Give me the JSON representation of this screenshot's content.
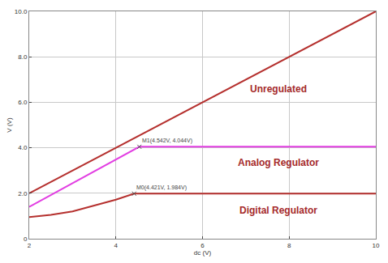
{
  "chart_data": {
    "type": "line",
    "x_label": "dc (V)",
    "y_label": "V (V)",
    "xlim": [
      2,
      10
    ],
    "ylim": [
      0,
      10
    ],
    "xticks": [
      2,
      4,
      6,
      8,
      10
    ],
    "yticks": [
      0,
      {
        "value": 2,
        "label": "2.0"
      },
      {
        "value": 4,
        "label": "4.0"
      },
      {
        "value": 6,
        "label": "6.0"
      },
      {
        "value": 8,
        "label": "8.0"
      },
      {
        "value": 10,
        "label": "10.0"
      }
    ],
    "grid": true,
    "series": [
      {
        "name": "Unregulated",
        "color": "#b5302e",
        "x": [
          2,
          10
        ],
        "values": [
          2,
          10
        ]
      },
      {
        "name": "Analog Regulator",
        "color": "#e23fe2",
        "x": [
          2,
          4.542,
          10
        ],
        "values": [
          1.4,
          4.044,
          4.044
        ]
      },
      {
        "name": "Digital Regulator",
        "color": "#b5302e",
        "x": [
          2,
          2.5,
          3,
          3.5,
          4,
          4.421,
          5,
          10
        ],
        "values": [
          0.95,
          1.05,
          1.2,
          1.45,
          1.72,
          1.984,
          1.984,
          1.984
        ]
      }
    ],
    "annotations": [
      {
        "text": "M1(4.542V, 4.044V)",
        "x": 4.542,
        "y": 4.044
      },
      {
        "text": "M0(4.421V, 1.984V)",
        "x": 4.421,
        "y": 1.984
      }
    ]
  }
}
